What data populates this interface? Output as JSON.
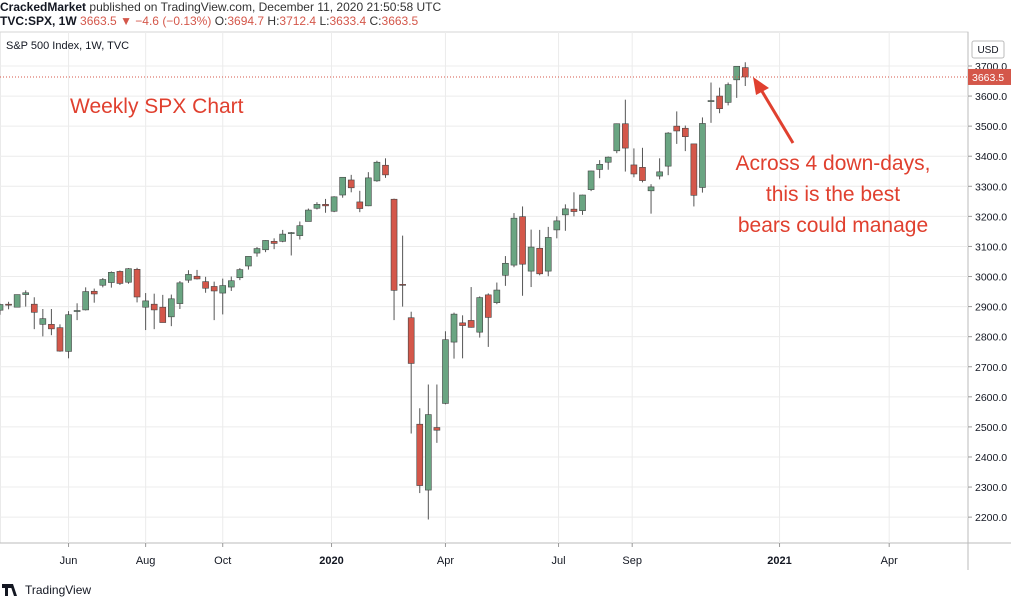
{
  "header": {
    "author": "CrackedMarket",
    "published": "published on TradingView.com, December 11, 2020 21:50:58 UTC",
    "symbol": "TVC:SPX, 1W",
    "change": "▼ −4.6 (−0.13%)",
    "ohlc_labels": [
      "O:",
      "H:",
      "L:",
      "C:"
    ]
  },
  "footer": {
    "brand": "TradingView"
  },
  "chart_data": {
    "type": "candlestick",
    "title": "S&P 500 Index, 1W, TVC",
    "currency": "USD",
    "up_color": "#6aa582",
    "down_color": "#d4574a",
    "grid": true,
    "annotations": [
      {
        "text": "Weekly SPX Chart"
      },
      {
        "lines": [
          "Across 4 down-days,",
          "this is the best",
          "bears could manage"
        ]
      }
    ],
    "open": [
      2888,
      2908,
      2898,
      2940,
      2908,
      2841,
      2841,
      2830,
      2751,
      2886,
      2889,
      2951,
      2971,
      2980,
      3017,
      2981,
      3024,
      2898,
      2908,
      2898,
      2866,
      2910,
      2988,
      3001,
      2983,
      2967,
      2945,
      2965,
      2996,
      3035,
      3078,
      3089,
      3117,
      3117,
      3144,
      3136,
      3183,
      3227,
      3240,
      3217,
      3271,
      3321,
      3248,
      3235,
      3318,
      3370,
      3257,
      2974,
      2863,
      2509,
      2290,
      2498,
      2578,
      2782,
      2846,
      2854,
      2815,
      2939,
      2913,
      3004,
      3038,
      3199,
      3018,
      3094,
      3018,
      3155,
      3205,
      3224,
      3219,
      3289,
      3356,
      3380,
      3418,
      3508,
      3371,
      3363,
      3285,
      3334,
      3367,
      3500,
      3493,
      3441,
      3296,
      3583,
      3600,
      3579,
      3654,
      3694.7
    ],
    "high": [
      2910,
      2916,
      2940,
      2954,
      2931,
      2892,
      2892,
      2841,
      2885,
      2911,
      2964,
      2960,
      2995,
      3017,
      3020,
      3028,
      3029,
      2945,
      2943,
      2939,
      2940,
      2985,
      3021,
      3022,
      2999,
      2983,
      2993,
      3000,
      3028,
      3067,
      3098,
      3121,
      3127,
      3155,
      3148,
      3183,
      3226,
      3247,
      3258,
      3267,
      3330,
      3338,
      3285,
      3347,
      3385,
      3393,
      3259,
      3136,
      2883,
      2562,
      2641,
      2641,
      2818,
      2880,
      2871,
      2965,
      2934,
      2944,
      2980,
      3068,
      3211,
      3233,
      3156,
      3155,
      3165,
      3200,
      3240,
      3280,
      3272,
      3352,
      3387,
      3399,
      3509,
      3588,
      3426,
      3428,
      3307,
      3393,
      3480,
      3549,
      3502,
      3441,
      3529,
      3645,
      3628,
      3645,
      3699,
      3712.4
    ],
    "low": [
      2873,
      2891,
      2897,
      2900,
      2825,
      2801,
      2805,
      2750,
      2728,
      2855,
      2887,
      2913,
      2964,
      2963,
      2972,
      2976,
      2914,
      2822,
      2825,
      2847,
      2835,
      2892,
      2979,
      2990,
      2946,
      2855,
      2874,
      2952,
      2988,
      3023,
      3066,
      3081,
      3091,
      3114,
      3070,
      3123,
      3183,
      3223,
      3212,
      3214,
      3262,
      3280,
      3214,
      3234,
      3315,
      3328,
      2855,
      2900,
      2478,
      2280,
      2192,
      2447,
      2575,
      2727,
      2728,
      2830,
      2797,
      2766,
      2908,
      2969,
      3031,
      2936,
      2965,
      3004,
      3001,
      3127,
      3152,
      3200,
      3205,
      3284,
      3327,
      3355,
      3410,
      3349,
      3330,
      3313,
      3209,
      3323,
      3337,
      3441,
      3417,
      3233,
      3279,
      3511,
      3543,
      3569,
      3594,
      3633.4
    ],
    "close": [
      2907,
      2905,
      2940,
      2946,
      2881,
      2860,
      2826,
      2752,
      2873,
      2887,
      2950,
      2942,
      2990,
      3014,
      2977,
      3026,
      2932,
      2919,
      2889,
      2847,
      2926,
      2979,
      3007,
      2992,
      2961,
      2952,
      2970,
      2986,
      3023,
      3067,
      3093,
      3120,
      3110,
      3141,
      3146,
      3169,
      3221,
      3240,
      3235,
      3265,
      3330,
      3295,
      3226,
      3328,
      3380,
      3338,
      2954,
      2972,
      2711,
      2305,
      2541,
      2489,
      2790,
      2875,
      2837,
      2831,
      2930,
      2864,
      2955,
      3044,
      3194,
      3041,
      3098,
      3009,
      3130,
      3185,
      3225,
      3216,
      3271,
      3351,
      3373,
      3397,
      3508,
      3427,
      3341,
      3319,
      3298,
      3348,
      3477,
      3484,
      3465,
      3270,
      3509,
      3585,
      3558,
      3638,
      3699,
      3663.5
    ],
    "xlim": [
      0,
      113
    ],
    "xticks": [
      {
        "value": 8,
        "label": "Jun"
      },
      {
        "value": 17,
        "label": "Aug"
      },
      {
        "value": 26,
        "label": "Oct"
      },
      {
        "value": 38.7,
        "label": "2020"
      },
      {
        "value": 52,
        "label": "Apr"
      },
      {
        "value": 65.2,
        "label": "Jul"
      },
      {
        "value": 73.8,
        "label": "Sep"
      },
      {
        "value": 91,
        "label": "2021"
      },
      {
        "value": 103.8,
        "label": "Apr"
      }
    ],
    "ylim": [
      2114,
      3813
    ],
    "yticks": [
      {
        "value": 2200,
        "label": "2200.0"
      },
      {
        "value": 2300,
        "label": "2300.0"
      },
      {
        "value": 2400,
        "label": "2400.0"
      },
      {
        "value": 2500,
        "label": "2500.0"
      },
      {
        "value": 2600,
        "label": "2600.0"
      },
      {
        "value": 2700,
        "label": "2700.0"
      },
      {
        "value": 2800,
        "label": "2800.0"
      },
      {
        "value": 2900,
        "label": "2900.0"
      },
      {
        "value": 3000,
        "label": "3000.0"
      },
      {
        "value": 3100,
        "label": "3100.0"
      },
      {
        "value": 3200,
        "label": "3200.0"
      },
      {
        "value": 3300,
        "label": "3300.0"
      },
      {
        "value": 3400,
        "label": "3400.0"
      },
      {
        "value": 3500,
        "label": "3500.0"
      },
      {
        "value": 3600,
        "label": "3600.0"
      },
      {
        "value": 3700,
        "label": "3700.0"
      }
    ]
  }
}
